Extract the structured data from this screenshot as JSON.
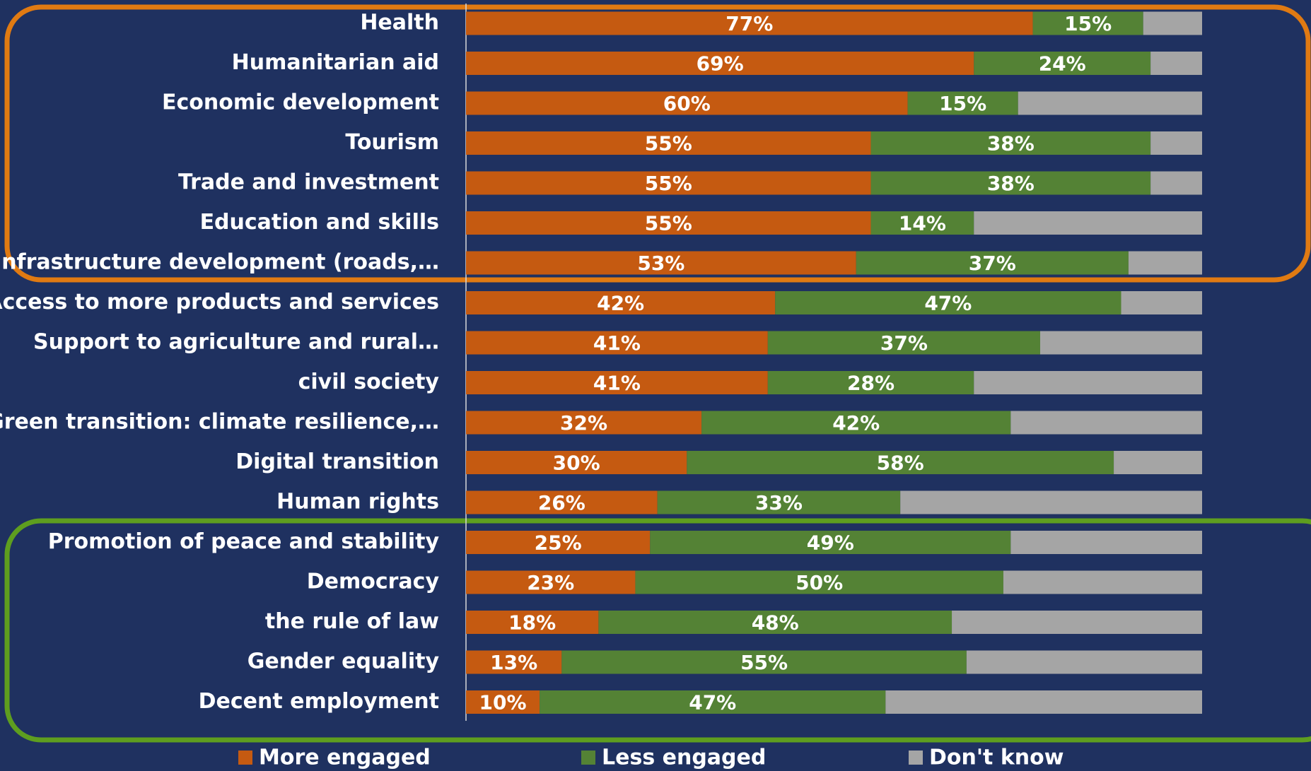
{
  "chart_data": {
    "type": "stacked-barh",
    "categories": [
      "Health",
      "Humanitarian aid",
      "Economic development",
      "Tourism",
      "Trade and investment",
      "Education and skills",
      "Infrastructure development (roads,…",
      "Access to more products and services",
      "Support to agriculture and rural…",
      "civil society",
      "Green transition: climate resilience,…",
      "Digital transition",
      "Human rights",
      "Promotion of peace and stability",
      "Democracy",
      "the rule of law",
      "Gender equality",
      "Decent employment"
    ],
    "series": [
      {
        "name": "More engaged",
        "color": "#c55a11",
        "values": [
          77,
          69,
          60,
          55,
          55,
          55,
          53,
          42,
          41,
          41,
          32,
          30,
          26,
          25,
          23,
          18,
          13,
          10
        ],
        "value_labels": [
          "77%",
          "69%",
          "60%",
          "55%",
          "55%",
          "55%",
          "53%",
          "42%",
          "41%",
          "41%",
          "32%",
          "30%",
          "26%",
          "25%",
          "23%",
          "18%",
          "13%",
          "10%"
        ]
      },
      {
        "name": "Less engaged",
        "color": "#548235",
        "values": [
          15,
          24,
          15,
          38,
          38,
          14,
          37,
          47,
          37,
          28,
          42,
          58,
          33,
          49,
          50,
          48,
          55,
          47
        ],
        "value_labels": [
          "15%",
          "24%",
          "15%",
          "38%",
          "38%",
          "14%",
          "37%",
          "47%",
          "37%",
          "28%",
          "42%",
          "58%",
          "33%",
          "49%",
          "50%",
          "48%",
          "55%",
          "47%"
        ]
      },
      {
        "name": "Don't know",
        "color": "#a5a5a5",
        "values": [
          8,
          7,
          25,
          7,
          7,
          31,
          10,
          11,
          22,
          31,
          26,
          12,
          41,
          26,
          27,
          34,
          32,
          43
        ]
      }
    ],
    "xlim": [
      0,
      100
    ]
  }
}
